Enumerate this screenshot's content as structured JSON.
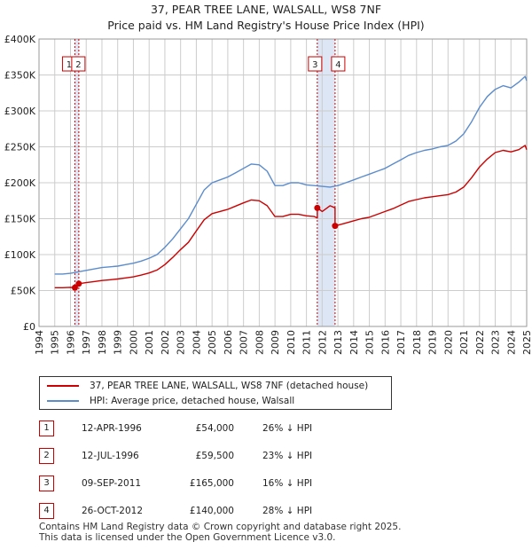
{
  "header": {
    "title_line1": "37, PEAR TREE LANE, WALSALL, WS8 7NF",
    "title_line2": "Price paid vs. HM Land Registry's House Price Index (HPI)"
  },
  "legend": {
    "property_label": "37, PEAR TREE LANE, WALSALL, WS8 7NF (detached house)",
    "hpi_label": "HPI: Average price, detached house, Walsall"
  },
  "colors": {
    "property": "#cc0000",
    "hpi": "#5b8ccc",
    "shade": "#dde6f5",
    "grid": "#cccccc",
    "marker_line": "#cc0000"
  },
  "transactions": [
    {
      "num": "1",
      "date": "12-APR-1996",
      "price": "£54,000",
      "hpi_diff": "26% ↓ HPI"
    },
    {
      "num": "2",
      "date": "12-JUL-1996",
      "price": "£59,500",
      "hpi_diff": "23% ↓ HPI"
    },
    {
      "num": "3",
      "date": "09-SEP-2011",
      "price": "£165,000",
      "hpi_diff": "16% ↓ HPI"
    },
    {
      "num": "4",
      "date": "26-OCT-2012",
      "price": "£140,000",
      "hpi_diff": "28% ↓ HPI"
    }
  ],
  "footer": {
    "line1": "Contains HM Land Registry data © Crown copyright and database right 2025.",
    "line2": "This data is licensed under the Open Government Licence v3.0."
  },
  "chart_data": {
    "type": "line",
    "title": "37, PEAR TREE LANE, WALSALL, WS8 7NF",
    "subtitle": "Price paid vs. HM Land Registry's House Price Index (HPI)",
    "xlabel": "",
    "ylabel": "",
    "xlim": [
      1994,
      2025
    ],
    "ylim": [
      0,
      400000
    ],
    "grid": true,
    "legend_position": "below",
    "x_ticks": [
      "1994",
      "1995",
      "1996",
      "1997",
      "1998",
      "1999",
      "2000",
      "2001",
      "2002",
      "2003",
      "2004",
      "2005",
      "2006",
      "2007",
      "2008",
      "2009",
      "2010",
      "2011",
      "2012",
      "2013",
      "2014",
      "2015",
      "2016",
      "2017",
      "2018",
      "2019",
      "2020",
      "2021",
      "2022",
      "2023",
      "2024",
      "2025"
    ],
    "y_ticks": [
      {
        "value": 0,
        "label": "£0"
      },
      {
        "value": 50000,
        "label": "£50K"
      },
      {
        "value": 100000,
        "label": "£100K"
      },
      {
        "value": 150000,
        "label": "£150K"
      },
      {
        "value": 200000,
        "label": "£200K"
      },
      {
        "value": 250000,
        "label": "£250K"
      },
      {
        "value": 300000,
        "label": "£300K"
      },
      {
        "value": 350000,
        "label": "£350K"
      },
      {
        "value": 400000,
        "label": "£400K"
      }
    ],
    "shaded_ranges": [
      [
        1996.28,
        1996.53
      ],
      [
        2011.69,
        2012.82
      ]
    ],
    "sale_points": [
      {
        "label": "1",
        "x": 1996.28,
        "y": 54000
      },
      {
        "label": "2",
        "x": 1996.53,
        "y": 59500
      },
      {
        "label": "3",
        "x": 2011.69,
        "y": 165000
      },
      {
        "label": "4",
        "x": 2012.82,
        "y": 140000
      }
    ],
    "series": [
      {
        "name": "HPI: Average price, detached house, Walsall",
        "x": [
          1995.0,
          1995.5,
          1996.0,
          1996.5,
          1997.0,
          1997.5,
          1998.0,
          1998.5,
          1999.0,
          1999.5,
          2000.0,
          2000.5,
          2001.0,
          2001.5,
          2002.0,
          2002.5,
          2003.0,
          2003.5,
          2004.0,
          2004.5,
          2005.0,
          2005.5,
          2006.0,
          2006.5,
          2007.0,
          2007.5,
          2008.0,
          2008.5,
          2009.0,
          2009.5,
          2010.0,
          2010.5,
          2011.0,
          2011.5,
          2012.0,
          2012.5,
          2013.0,
          2013.5,
          2014.0,
          2014.5,
          2015.0,
          2015.5,
          2016.0,
          2016.5,
          2017.0,
          2017.5,
          2018.0,
          2018.5,
          2019.0,
          2019.5,
          2020.0,
          2020.5,
          2021.0,
          2021.5,
          2022.0,
          2022.5,
          2023.0,
          2023.5,
          2024.0,
          2024.5,
          2024.9,
          2025.0
        ],
        "values": [
          73000,
          73000,
          74000,
          76000,
          78000,
          80000,
          82000,
          83000,
          84000,
          86000,
          88000,
          91000,
          95000,
          100000,
          110000,
          122000,
          136000,
          150000,
          170000,
          190000,
          200000,
          204000,
          208000,
          214000,
          220000,
          226000,
          225000,
          216000,
          196000,
          196000,
          200000,
          200000,
          197000,
          196000,
          195000,
          194000,
          196000,
          200000,
          204000,
          208000,
          212000,
          216000,
          220000,
          226000,
          232000,
          238000,
          242000,
          245000,
          247000,
          250000,
          252000,
          258000,
          268000,
          285000,
          305000,
          320000,
          330000,
          335000,
          332000,
          340000,
          348000,
          342000
        ]
      },
      {
        "name": "37, PEAR TREE LANE, WALSALL, WS8 7NF (detached house)",
        "x": [
          1995.0,
          1995.5,
          1996.0,
          1996.28,
          1996.28,
          1996.53,
          1996.53,
          1997.0,
          1997.5,
          1998.0,
          1998.5,
          1999.0,
          1999.5,
          2000.0,
          2000.5,
          2001.0,
          2001.5,
          2002.0,
          2002.5,
          2003.0,
          2003.5,
          2004.0,
          2004.5,
          2005.0,
          2005.5,
          2006.0,
          2006.5,
          2007.0,
          2007.5,
          2008.0,
          2008.5,
          2009.0,
          2009.5,
          2010.0,
          2010.5,
          2011.0,
          2011.5,
          2011.69,
          2011.69,
          2012.0,
          2012.5,
          2012.82,
          2012.82,
          2013.0,
          2013.5,
          2014.0,
          2014.5,
          2015.0,
          2015.5,
          2016.0,
          2016.5,
          2017.0,
          2017.5,
          2018.0,
          2018.5,
          2019.0,
          2019.5,
          2020.0,
          2020.5,
          2021.0,
          2021.5,
          2022.0,
          2022.5,
          2023.0,
          2023.5,
          2024.0,
          2024.5,
          2024.9,
          2025.0
        ],
        "values": [
          54000,
          54000,
          54500,
          54000,
          54000,
          59500,
          59500,
          61000,
          62500,
          64000,
          65000,
          66000,
          67500,
          69000,
          71500,
          74500,
          78500,
          86000,
          96000,
          107000,
          117000,
          133000,
          148500,
          157000,
          160000,
          163000,
          167500,
          172000,
          176000,
          175000,
          168000,
          153000,
          153000,
          156000,
          156000,
          154000,
          153000,
          151000,
          165000,
          160000,
          168000,
          165000,
          140000,
          141000,
          144000,
          147000,
          150000,
          152000,
          156000,
          160000,
          164000,
          169000,
          174000,
          176500,
          179000,
          180500,
          182000,
          183500,
          187000,
          194000,
          207000,
          222000,
          233000,
          242000,
          245000,
          243000,
          246000,
          252000,
          246000
        ]
      }
    ]
  }
}
